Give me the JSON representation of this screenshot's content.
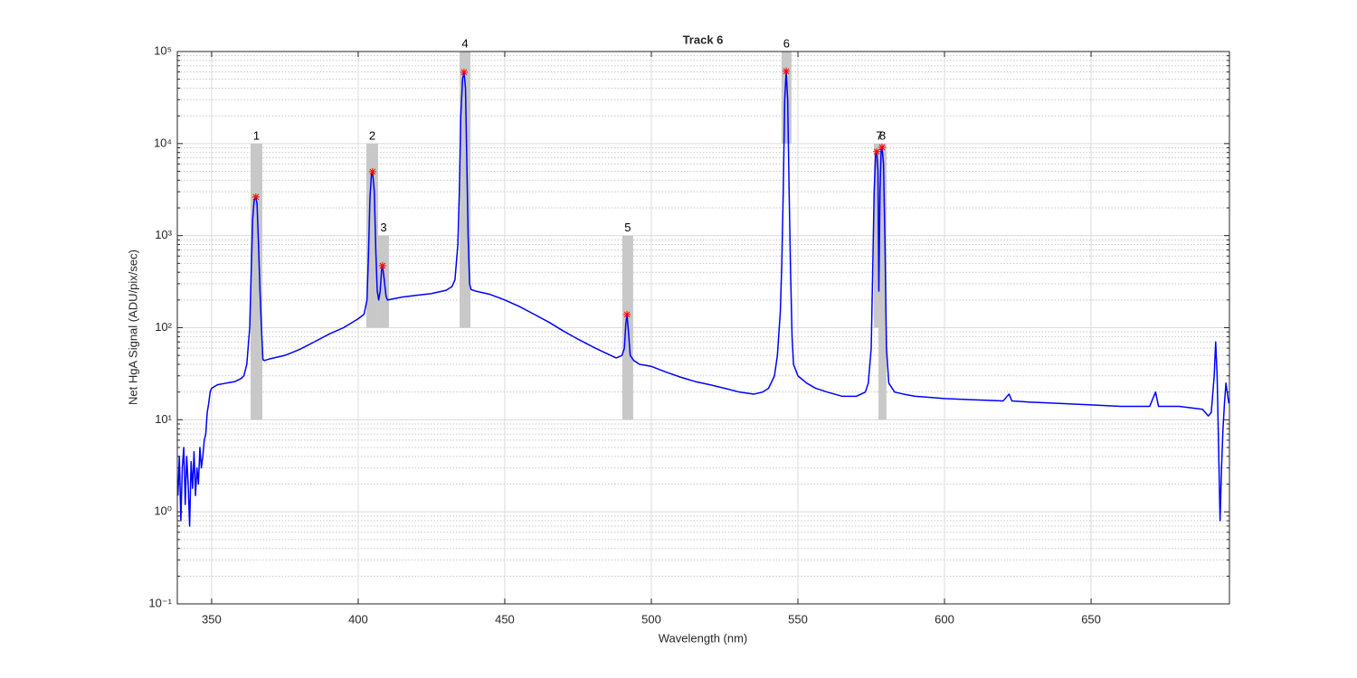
{
  "chart_data": {
    "type": "line",
    "title": "Track 6",
    "x_label": "Wavelength (nm)",
    "y_label": "Net HgA Signal (ADU/pix/sec)",
    "xlim": [
      338.3,
      697.2
    ],
    "ylim": [
      0.1,
      100000
    ],
    "y_scale": "log",
    "xticks": [
      350,
      400,
      450,
      500,
      550,
      600,
      650
    ],
    "yticks": [
      {
        "value": 0.1,
        "label": "10⁻¹"
      },
      {
        "value": 1,
        "label": "10⁰"
      },
      {
        "value": 10,
        "label": "10¹"
      },
      {
        "value": 100,
        "label": "10²"
      },
      {
        "value": 1000,
        "label": "10³"
      },
      {
        "value": 10000,
        "label": "10⁴"
      },
      {
        "value": 100000,
        "label": "10⁵"
      }
    ],
    "grid": true,
    "minor_grid": true,
    "series": [
      {
        "color": "#0000ff",
        "x": [
          338.5,
          339,
          339.5,
          340,
          340.5,
          341,
          341.5,
          342,
          342.5,
          343,
          343.5,
          344,
          344.5,
          345,
          345.5,
          346,
          346.5,
          347,
          347.5,
          348,
          348.5,
          349,
          349.5,
          350,
          352,
          355,
          358,
          360,
          361,
          362,
          363,
          363.5,
          364,
          364.5,
          365.1,
          365.5,
          366,
          366.5,
          367,
          367.5,
          368,
          370,
          375,
          380,
          385,
          390,
          395,
          400,
          402,
          403,
          403.5,
          404,
          404.5,
          404.9,
          405.5,
          406,
          406.5,
          407,
          407.5,
          408,
          408.3,
          408.8,
          409.5,
          410,
          415,
          420,
          425,
          430,
          432,
          433,
          434,
          434.5,
          435,
          435.6,
          436.1,
          436.6,
          437,
          437.5,
          438,
          438.5,
          440,
          445,
          450,
          455,
          460,
          465,
          470,
          475,
          480,
          485,
          488,
          490,
          490.8,
          491.3,
          491.7,
          492.2,
          492.8,
          494,
          496,
          500,
          505,
          510,
          515,
          520,
          525,
          530,
          535,
          538,
          540,
          542,
          543,
          544,
          544.5,
          545,
          545.5,
          546,
          546.5,
          547,
          547.5,
          548,
          548.5,
          550,
          553,
          556,
          560,
          565,
          570,
          573,
          574,
          575,
          575.5,
          576,
          576.5,
          576.9,
          577.3,
          577.6,
          578,
          578.4,
          578.7,
          579.2,
          579.7,
          580.2,
          581,
          583,
          586,
          590,
          600,
          610,
          620,
          622,
          623,
          630,
          640,
          650,
          660,
          670,
          672,
          673,
          680,
          688,
          690,
          691,
          692,
          692.5,
          693,
          693.5,
          694,
          694.5,
          695,
          695.5,
          696,
          697
        ],
        "values": [
          1.5,
          4,
          0.8,
          3,
          5,
          1.2,
          4,
          2,
          0.7,
          3.5,
          1.8,
          4.5,
          1.5,
          3,
          2,
          5,
          3,
          4,
          6,
          7,
          12,
          15,
          20,
          22,
          24,
          25,
          26,
          28,
          30,
          40,
          100,
          400,
          1500,
          2400,
          2630,
          2200,
          800,
          250,
          100,
          45,
          44,
          46,
          50,
          58,
          70,
          85,
          100,
          125,
          140,
          200,
          600,
          2500,
          4500,
          4950,
          3000,
          700,
          250,
          200,
          250,
          430,
          472,
          350,
          220,
          200,
          215,
          225,
          235,
          255,
          280,
          330,
          800,
          3000,
          20000,
          50000,
          59700,
          40000,
          8000,
          1000,
          300,
          260,
          250,
          230,
          200,
          170,
          140,
          115,
          92,
          75,
          62,
          52,
          47,
          50,
          60,
          110,
          139,
          90,
          50,
          44,
          40,
          38,
          33,
          29,
          26,
          24,
          22,
          20,
          19,
          20,
          22,
          30,
          50,
          150,
          500,
          3000,
          30000,
          61100,
          30000,
          3000,
          400,
          80,
          40,
          30,
          25,
          22,
          20,
          18,
          18,
          20,
          25,
          60,
          400,
          3000,
          7500,
          8170,
          5000,
          250,
          3000,
          8500,
          9120,
          6000,
          800,
          60,
          25,
          20,
          19,
          18,
          17,
          16.5,
          16,
          19,
          16,
          15.5,
          15,
          14.5,
          14,
          14,
          20,
          14,
          14,
          13,
          11,
          12,
          30,
          70,
          30,
          5,
          0.8,
          3,
          8,
          15,
          25,
          15
        ]
      }
    ],
    "peaks": {
      "color": "#ff0000",
      "x": [
        365.1,
        404.9,
        408.3,
        436.1,
        491.7,
        546.0,
        576.9,
        578.7
      ],
      "values": [
        2630,
        4950,
        472,
        59700,
        139,
        61100,
        8170,
        9120
      ]
    },
    "regions": {
      "color": "#c8c8c8",
      "items": [
        {
          "label": "1",
          "x": [
            363.3,
            367.3
          ],
          "y": [
            10,
            10000
          ]
        },
        {
          "label": "2",
          "x": [
            402.8,
            406.8
          ],
          "y": [
            100,
            10000
          ]
        },
        {
          "label": "3",
          "x": [
            406.8,
            410.5
          ],
          "y": [
            100,
            1000
          ]
        },
        {
          "label": "4",
          "x": [
            434.6,
            438.3
          ],
          "y": [
            100,
            100000
          ]
        },
        {
          "label": "5",
          "x": [
            490.1,
            493.8
          ],
          "y": [
            10,
            1000
          ]
        },
        {
          "label": "6",
          "x": [
            544.4,
            547.8
          ],
          "y": [
            10000,
            100000
          ]
        },
        {
          "label": "7",
          "x": [
            575.9,
            579.6
          ],
          "y": [
            100,
            10000
          ]
        },
        {
          "label": "8",
          "x": [
            577.5,
            580.2
          ],
          "y": [
            10,
            10000
          ]
        }
      ]
    }
  }
}
